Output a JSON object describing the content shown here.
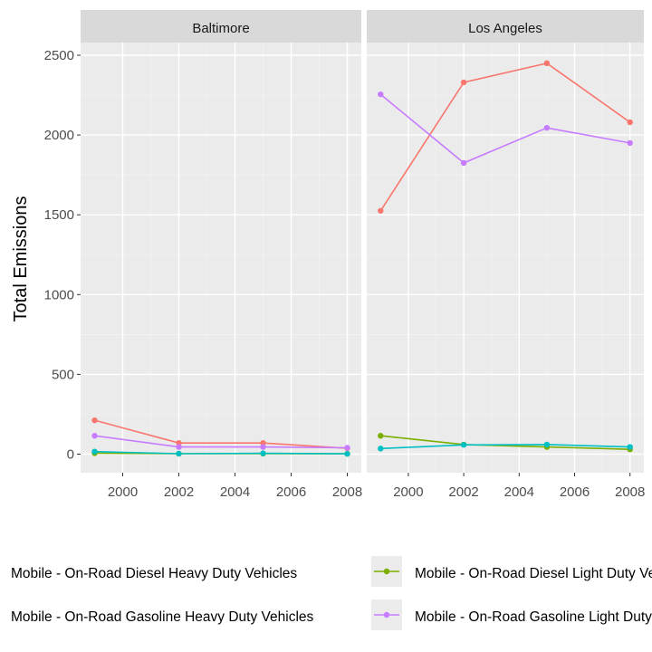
{
  "chart_data": {
    "type": "line",
    "facets": [
      "Baltimore",
      "Los Angeles"
    ],
    "x": [
      1999,
      2002,
      2005,
      2008
    ],
    "xticks": [
      2000,
      2002,
      2004,
      2006,
      2008
    ],
    "xticklabels": [
      "2000",
      "2002",
      "2004",
      "2006",
      "2008"
    ],
    "xlim": [
      1998.5,
      2008.5
    ],
    "yticks": [
      0,
      500,
      1000,
      1500,
      2000,
      2500
    ],
    "yticklabels": [
      "0",
      "500",
      "1000",
      "1500",
      "2000",
      "2500"
    ],
    "ylim": [
      -123,
      2500
    ],
    "ylabel": "Total Emissions",
    "xlabel": "",
    "grid": true,
    "legend_position": "bottom",
    "series": [
      {
        "name": "Mobile - On-Road Diesel Heavy Duty Vehicles",
        "color": "#F8766D",
        "values": {
          "Baltimore": [
            212,
            70,
            70,
            37
          ],
          "Los Angeles": [
            1525,
            2330,
            2450,
            2080
          ]
        }
      },
      {
        "name": "Mobile - On-Road Diesel Light Duty Vehicles",
        "color": "#7CAE00",
        "values": {
          "Baltimore": [
            6,
            3,
            3,
            2
          ],
          "Los Angeles": [
            115,
            60,
            45,
            30
          ]
        }
      },
      {
        "name": "Mobile - On-Road Gasoline Heavy Duty Vehicles",
        "color": "#00BFC4",
        "values": {
          "Baltimore": [
            16,
            3,
            5,
            2
          ],
          "Los Angeles": [
            35,
            58,
            60,
            45
          ]
        }
      },
      {
        "name": "Mobile - On-Road Gasoline Light Duty Vehicles",
        "color": "#C77CFF",
        "values": {
          "Baltimore": [
            115,
            45,
            45,
            40
          ],
          "Los Angeles": [
            2255,
            1825,
            2045,
            1950
          ]
        }
      }
    ],
    "legend_items": [
      {
        "label": "Mobile - On-Road Diesel Heavy Duty Vehicles",
        "series_index": 0
      },
      {
        "label": "Mobile - On-Road Diesel Light Duty Vehicles",
        "series_index": 1
      },
      {
        "label": "Mobile - On-Road Gasoline Heavy Duty Vehicles",
        "series_index": 2
      },
      {
        "label": "Mobile - On-Road Gasoline Light Duty Vehicles",
        "series_index": 3
      }
    ]
  }
}
